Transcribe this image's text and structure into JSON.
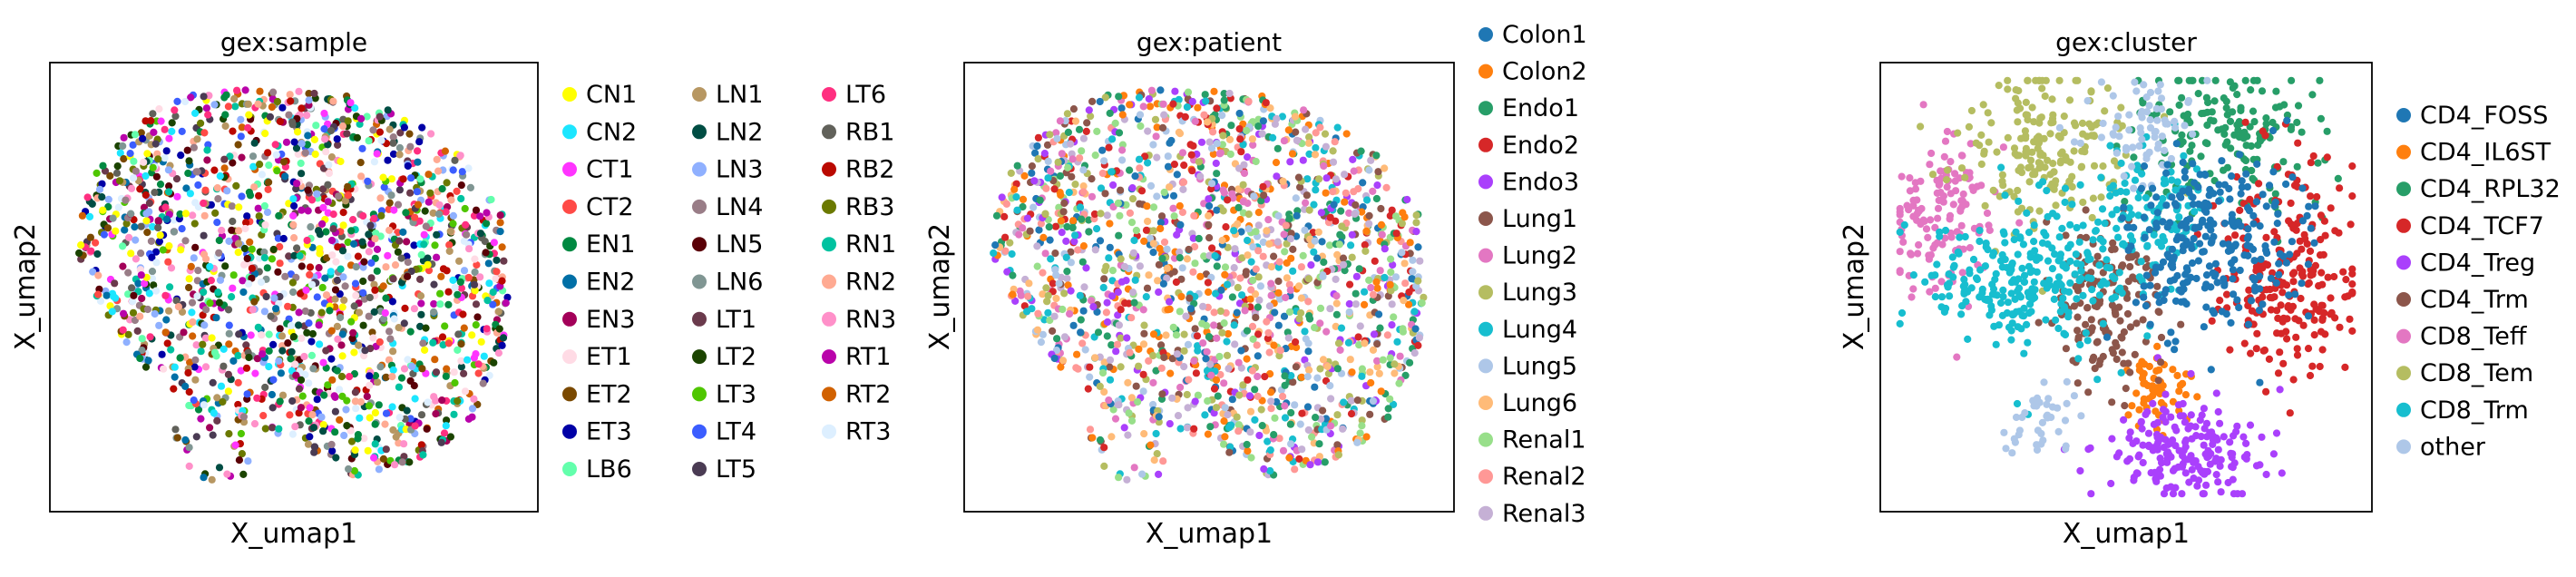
{
  "chart_data": [
    {
      "type": "scatter",
      "title": "gex:sample",
      "xlabel": "X_umap1",
      "ylabel": "X_umap2",
      "grid": false,
      "ticks": false,
      "legend_placement": "right",
      "legend_columns": 3,
      "series": [
        {
          "name": "CN1",
          "color": "#ffff00"
        },
        {
          "name": "CN2",
          "color": "#1ce6ff"
        },
        {
          "name": "CT1",
          "color": "#ff34ff"
        },
        {
          "name": "CT2",
          "color": "#ff4a46"
        },
        {
          "name": "EN1",
          "color": "#008941"
        },
        {
          "name": "EN2",
          "color": "#006fa6"
        },
        {
          "name": "EN3",
          "color": "#a30059"
        },
        {
          "name": "ET1",
          "color": "#ffdbe5"
        },
        {
          "name": "ET2",
          "color": "#7a4900"
        },
        {
          "name": "ET3",
          "color": "#0000a6"
        },
        {
          "name": "LB6",
          "color": "#63ffac"
        },
        {
          "name": "LN1",
          "color": "#b79762"
        },
        {
          "name": "LN2",
          "color": "#004d43"
        },
        {
          "name": "LN3",
          "color": "#8fb0ff"
        },
        {
          "name": "LN4",
          "color": "#997d87"
        },
        {
          "name": "LN5",
          "color": "#5a0007"
        },
        {
          "name": "LN6",
          "color": "#809693"
        },
        {
          "name": "LT1",
          "color": "#6a3a4c"
        },
        {
          "name": "LT2",
          "color": "#1b4400"
        },
        {
          "name": "LT3",
          "color": "#4fc601"
        },
        {
          "name": "LT4",
          "color": "#3b5dff"
        },
        {
          "name": "LT5",
          "color": "#4a3b53"
        },
        {
          "name": "LT6",
          "color": "#ff2f80"
        },
        {
          "name": "RB1",
          "color": "#61615a"
        },
        {
          "name": "RB2",
          "color": "#ba0900"
        },
        {
          "name": "RB3",
          "color": "#6b7900"
        },
        {
          "name": "RN1",
          "color": "#00c2a0"
        },
        {
          "name": "RN2",
          "color": "#ffaa92"
        },
        {
          "name": "RN3",
          "color": "#ff90c9"
        },
        {
          "name": "RT1",
          "color": "#b903aa"
        },
        {
          "name": "RT2",
          "color": "#d16100"
        },
        {
          "name": "RT3",
          "color": "#ddefff"
        }
      ]
    },
    {
      "type": "scatter",
      "title": "gex:patient",
      "xlabel": "X_umap1",
      "ylabel": "X_umap2",
      "grid": false,
      "ticks": false,
      "legend_placement": "right",
      "legend_columns": 1,
      "series": [
        {
          "name": "Colon1",
          "color": "#1f77b4"
        },
        {
          "name": "Colon2",
          "color": "#ff7f0e"
        },
        {
          "name": "Endo1",
          "color": "#279e68"
        },
        {
          "name": "Endo2",
          "color": "#d62728"
        },
        {
          "name": "Endo3",
          "color": "#aa40fc"
        },
        {
          "name": "Lung1",
          "color": "#8c564b"
        },
        {
          "name": "Lung2",
          "color": "#e377c2"
        },
        {
          "name": "Lung3",
          "color": "#b5bd61"
        },
        {
          "name": "Lung4",
          "color": "#17becf"
        },
        {
          "name": "Lung5",
          "color": "#aec7e8"
        },
        {
          "name": "Lung6",
          "color": "#ffbb78"
        },
        {
          "name": "Renal1",
          "color": "#98df8a"
        },
        {
          "name": "Renal2",
          "color": "#ff9896"
        },
        {
          "name": "Renal3",
          "color": "#c5b0d5"
        }
      ]
    },
    {
      "type": "scatter",
      "title": "gex:cluster",
      "xlabel": "X_umap1",
      "ylabel": "X_umap2",
      "grid": false,
      "ticks": false,
      "legend_placement": "right",
      "legend_columns": 1,
      "series": [
        {
          "name": "CD4_FOSS",
          "color": "#1f77b4"
        },
        {
          "name": "CD4_IL6ST",
          "color": "#ff7f0e"
        },
        {
          "name": "CD4_RPL32",
          "color": "#279e68"
        },
        {
          "name": "CD4_TCF7",
          "color": "#d62728"
        },
        {
          "name": "CD4_Treg",
          "color": "#aa40fc"
        },
        {
          "name": "CD4_Trm",
          "color": "#8c564b"
        },
        {
          "name": "CD8_Teff",
          "color": "#e377c2"
        },
        {
          "name": "CD8_Tem",
          "color": "#b5bd61"
        },
        {
          "name": "CD8_Trm",
          "color": "#17becf"
        },
        {
          "name": "other",
          "color": "#aec7e8"
        }
      ]
    }
  ]
}
